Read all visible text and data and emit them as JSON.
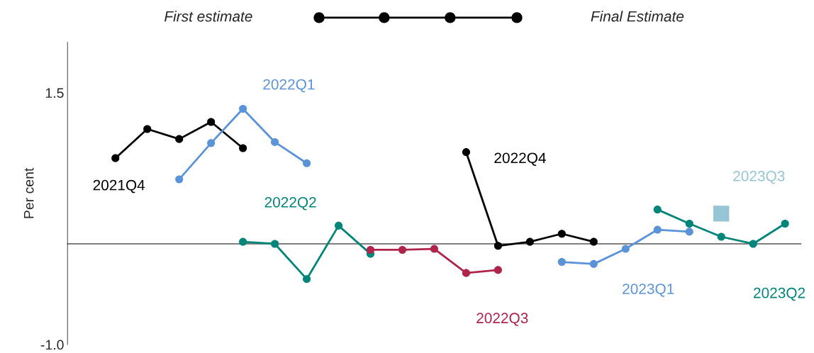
{
  "chart_data": {
    "type": "line",
    "ylabel": "Per cent",
    "categories": [
      null,
      null,
      null,
      null,
      null,
      null,
      null,
      null,
      null,
      null,
      null,
      null,
      null,
      null,
      null,
      null,
      null,
      null,
      null,
      null,
      null,
      null,
      null
    ],
    "ylim": [
      -1.0,
      2.0
    ],
    "yticks": [
      1.5,
      {
        "value": -1.0,
        "label": "-1.0"
      }
    ],
    "tick_labels": "y",
    "marker": "circle",
    "grid": false,
    "legend": false,
    "series": [
      {
        "name": "2021Q4",
        "color": "#000000",
        "values": [
          null,
          0.85,
          1.14,
          1.04,
          1.21,
          0.95,
          null,
          null,
          null,
          null,
          null,
          null,
          null,
          null,
          null,
          null,
          null,
          null,
          null,
          null,
          null,
          null,
          null
        ]
      },
      {
        "name": "2022Q1",
        "color": "#5b93d9",
        "values": [
          null,
          null,
          null,
          0.64,
          1.0,
          1.34,
          1.01,
          0.8,
          null,
          null,
          null,
          null,
          null,
          null,
          null,
          null,
          null,
          null,
          null,
          null,
          null,
          null,
          null
        ]
      },
      {
        "name": "2022Q2",
        "color": "#00857a",
        "values": [
          null,
          null,
          null,
          null,
          null,
          0.02,
          0.0,
          -0.35,
          0.18,
          -0.1,
          null,
          null,
          null,
          null,
          null,
          null,
          null,
          null,
          null,
          null,
          null,
          null,
          null
        ]
      },
      {
        "name": "2022Q3",
        "color": "#b0244a",
        "values": [
          null,
          null,
          null,
          null,
          null,
          null,
          null,
          null,
          null,
          -0.06,
          -0.06,
          -0.05,
          -0.29,
          -0.26,
          null,
          null,
          null,
          null,
          null,
          null,
          null,
          null,
          null
        ]
      },
      {
        "name": "2022Q4",
        "color": "#000000",
        "values": [
          null,
          null,
          null,
          null,
          null,
          null,
          null,
          null,
          null,
          null,
          null,
          null,
          0.91,
          -0.02,
          0.02,
          0.1,
          0.02,
          null,
          null,
          null,
          null,
          null,
          null
        ]
      },
      {
        "name": "2023Q1",
        "color": "#5b93d9",
        "values": [
          null,
          null,
          null,
          null,
          null,
          null,
          null,
          null,
          null,
          null,
          null,
          null,
          null,
          null,
          null,
          -0.18,
          -0.2,
          -0.05,
          0.14,
          0.12,
          null,
          null,
          null
        ]
      },
      {
        "name": "2023Q2",
        "color": "#00857a",
        "values": [
          null,
          null,
          null,
          null,
          null,
          null,
          null,
          null,
          null,
          null,
          null,
          null,
          null,
          null,
          null,
          null,
          null,
          null,
          0.34,
          0.2,
          0.07,
          0.0,
          0.2
        ]
      },
      {
        "name": "2023Q3",
        "type": "scatter",
        "marker": "square",
        "color": "#96c6d6",
        "values": [
          null,
          null,
          null,
          null,
          null,
          null,
          null,
          null,
          null,
          null,
          null,
          null,
          null,
          null,
          null,
          null,
          null,
          null,
          null,
          null,
          0.3,
          null,
          null
        ]
      }
    ],
    "annotations": [
      "First estimate",
      "Final Estimate"
    ]
  }
}
